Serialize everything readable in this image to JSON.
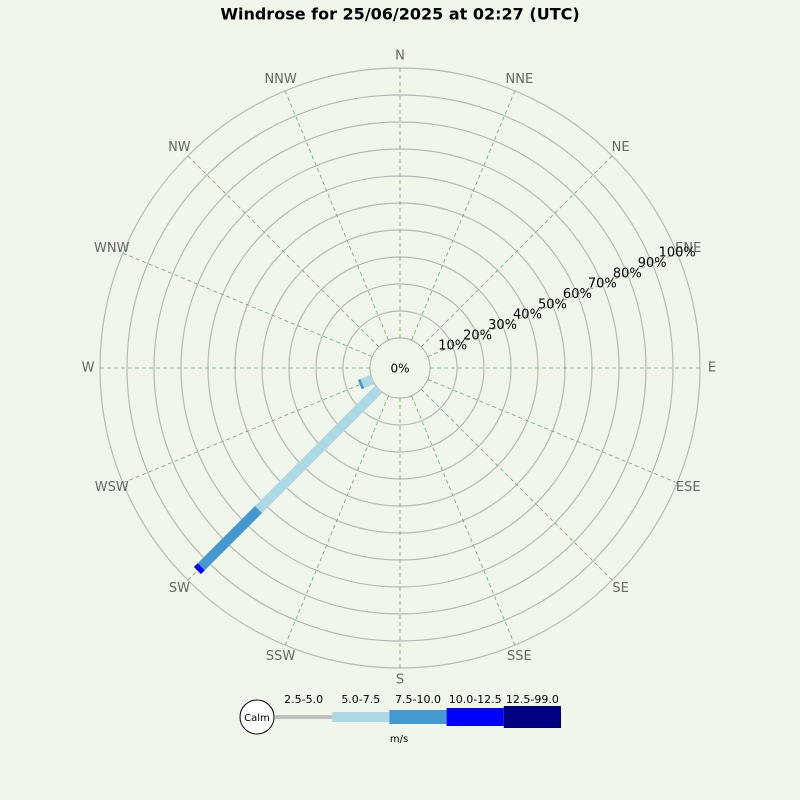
{
  "chart_data": {
    "type": "windrose",
    "title": "Windrose for 25/06/2025 at 02:27 (UTC)",
    "directions": [
      "N",
      "NNE",
      "NE",
      "ENE",
      "E",
      "ESE",
      "SE",
      "SSE",
      "S",
      "SSW",
      "SW",
      "WSW",
      "W",
      "WNW",
      "NW",
      "NNW"
    ],
    "calm_label": "Calm",
    "unit_label": "m/s",
    "rlim": [
      0,
      100
    ],
    "rticks": [
      {
        "value": 0,
        "label": "0%"
      },
      {
        "value": 10,
        "label": "10%"
      },
      {
        "value": 20,
        "label": "20%"
      },
      {
        "value": 30,
        "label": "30%"
      },
      {
        "value": 40,
        "label": "40%"
      },
      {
        "value": 50,
        "label": "50%"
      },
      {
        "value": 60,
        "label": "60%"
      },
      {
        "value": 70,
        "label": "70%"
      },
      {
        "value": 80,
        "label": "80%"
      },
      {
        "value": 90,
        "label": "90%"
      },
      {
        "value": 100,
        "label": "100%"
      }
    ],
    "series": [
      {
        "name": "2.5-5.0",
        "color": "#c0c0c0",
        "values": [
          0,
          0,
          0,
          0,
          0,
          0,
          0,
          0,
          0,
          0,
          0,
          0,
          0,
          0,
          0,
          0
        ]
      },
      {
        "name": "5.0-7.5",
        "color": "#add8e6",
        "values": [
          0,
          0,
          0,
          0,
          0,
          0,
          0,
          0,
          0,
          0,
          63,
          4,
          0,
          0,
          0,
          0
        ]
      },
      {
        "name": "7.5-10.0",
        "color": "#4499d0",
        "values": [
          0,
          0,
          0,
          0,
          0,
          0,
          0,
          0,
          0,
          0,
          30,
          1,
          0,
          0,
          0,
          0
        ]
      },
      {
        "name": "10.0-12.5",
        "color": "#0000ff",
        "values": [
          0,
          0,
          0,
          0,
          0,
          0,
          0,
          0,
          0,
          0,
          2,
          0,
          0,
          0,
          0,
          0
        ]
      },
      {
        "name": "12.5-99.0",
        "color": "#000080",
        "values": [
          0,
          0,
          0,
          0,
          0,
          0,
          0,
          0,
          0,
          0,
          0,
          0,
          0,
          0,
          0,
          0
        ]
      }
    ]
  }
}
